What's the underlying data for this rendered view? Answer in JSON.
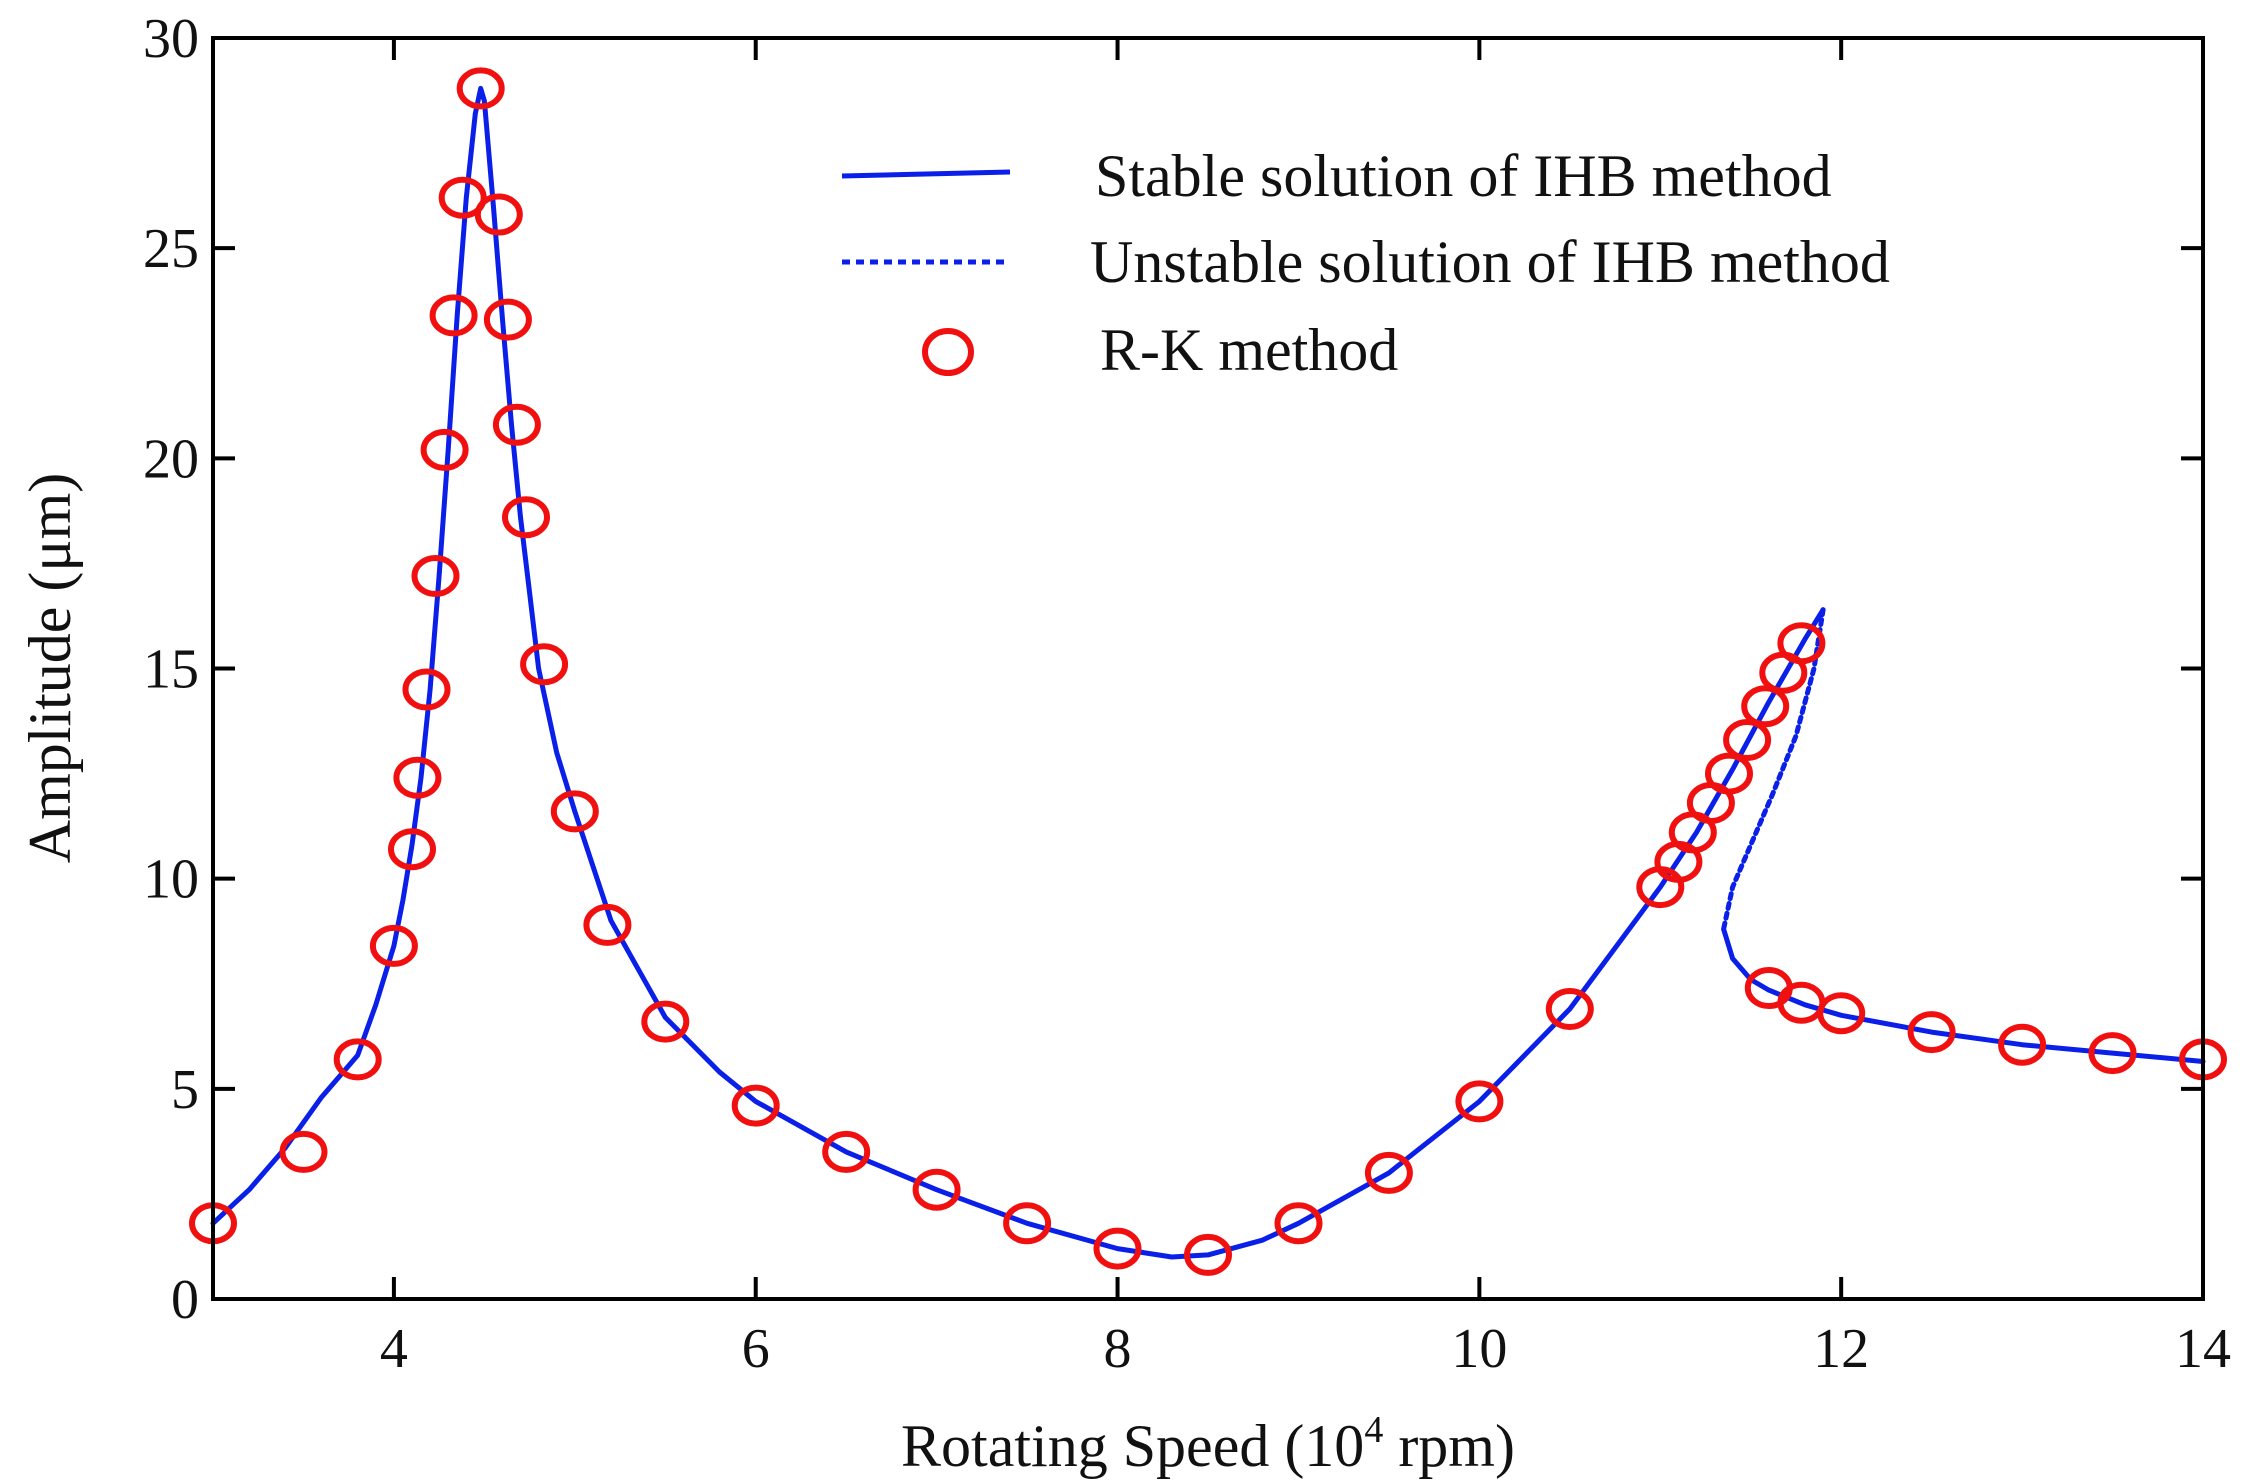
{
  "chart_data": {
    "type": "line",
    "xlabel": {
      "main": "Rotating Speed (10",
      "sup": "4",
      "tail": " rpm)"
    },
    "ylabel": "Amplitude (μm)",
    "xlim": [
      3,
      14
    ],
    "ylim": [
      0,
      30
    ],
    "xticks": [
      4,
      6,
      8,
      10,
      12,
      14
    ],
    "yticks": [
      0,
      5,
      10,
      15,
      20,
      25,
      30
    ],
    "xtick_labels": [
      "4",
      "6",
      "8",
      "10",
      "12",
      "14"
    ],
    "ytick_labels": [
      "0",
      "5",
      "10",
      "15",
      "20",
      "25",
      "30"
    ],
    "legend_position": "top-right",
    "colors": {
      "ihb": "#0a1fe8",
      "rk": "#f01010",
      "axis": "#000000"
    },
    "series": [
      {
        "name": "Stable solution of IHB method",
        "style": "solid",
        "segments": [
          {
            "x": [
              3.0,
              3.2,
              3.4,
              3.6,
              3.8,
              3.9,
              4.0,
              4.05,
              4.1,
              4.15,
              4.2,
              4.25,
              4.3,
              4.35,
              4.4,
              4.45,
              4.48,
              4.5,
              4.55,
              4.6,
              4.65,
              4.7,
              4.75,
              4.8,
              4.9,
              5.0,
              5.2,
              5.5,
              5.8,
              6.0,
              6.5,
              7.0,
              7.5,
              8.0,
              8.3,
              8.5,
              8.8,
              9.0,
              9.5,
              10.0,
              10.5,
              11.0,
              11.2,
              11.4,
              11.6,
              11.8,
              11.9
            ],
            "y": [
              1.8,
              2.6,
              3.6,
              4.8,
              5.8,
              7.0,
              8.4,
              9.5,
              10.8,
              12.4,
              14.5,
              17.2,
              20.2,
              23.4,
              26.2,
              28.2,
              28.8,
              28.5,
              26.0,
              23.3,
              20.8,
              18.6,
              16.8,
              15.0,
              13.0,
              11.6,
              9.0,
              6.7,
              5.4,
              4.7,
              3.5,
              2.6,
              1.8,
              1.2,
              1.0,
              1.05,
              1.4,
              1.8,
              3.0,
              4.7,
              6.9,
              9.8,
              11.1,
              12.6,
              14.2,
              15.7,
              16.4
            ]
          },
          {
            "x": [
              11.35,
              11.4,
              11.5,
              11.6,
              11.8,
              12.0,
              12.5,
              13.0,
              13.5,
              14.0
            ],
            "y": [
              8.8,
              8.1,
              7.6,
              7.35,
              7.0,
              6.75,
              6.35,
              6.05,
              5.85,
              5.65
            ]
          }
        ]
      },
      {
        "name": "Unstable solution of IHB method",
        "style": "dotted",
        "segments": [
          {
            "x": [
              11.9,
              11.85,
              11.75,
              11.62,
              11.5,
              11.4,
              11.35
            ],
            "y": [
              16.4,
              15.0,
              13.4,
              12.0,
              10.8,
              9.8,
              8.8
            ]
          }
        ]
      },
      {
        "name": " R-K method",
        "style": "markers",
        "x": [
          3.0,
          3.5,
          3.8,
          4.0,
          4.1,
          4.13,
          4.18,
          4.23,
          4.28,
          4.33,
          4.38,
          4.48,
          4.58,
          4.63,
          4.68,
          4.73,
          4.83,
          5.0,
          5.18,
          5.5,
          6.0,
          6.5,
          7.0,
          7.5,
          8.0,
          8.5,
          9.0,
          9.5,
          10.0,
          10.5,
          11.0,
          11.1,
          11.18,
          11.28,
          11.38,
          11.48,
          11.58,
          11.68,
          11.78,
          11.6,
          11.78,
          12.0,
          12.5,
          13.0,
          13.5,
          14.0
        ],
        "y": [
          1.8,
          3.5,
          5.7,
          8.4,
          10.7,
          12.4,
          14.5,
          17.2,
          20.2,
          23.4,
          26.2,
          28.8,
          25.8,
          23.3,
          20.8,
          18.6,
          15.1,
          11.6,
          8.9,
          6.6,
          4.6,
          3.5,
          2.6,
          1.8,
          1.2,
          1.05,
          1.8,
          3.0,
          4.7,
          6.9,
          9.8,
          10.4,
          11.1,
          11.8,
          12.5,
          13.3,
          14.1,
          14.9,
          15.6,
          7.4,
          7.05,
          6.8,
          6.35,
          6.05,
          5.85,
          5.7
        ]
      }
    ]
  }
}
